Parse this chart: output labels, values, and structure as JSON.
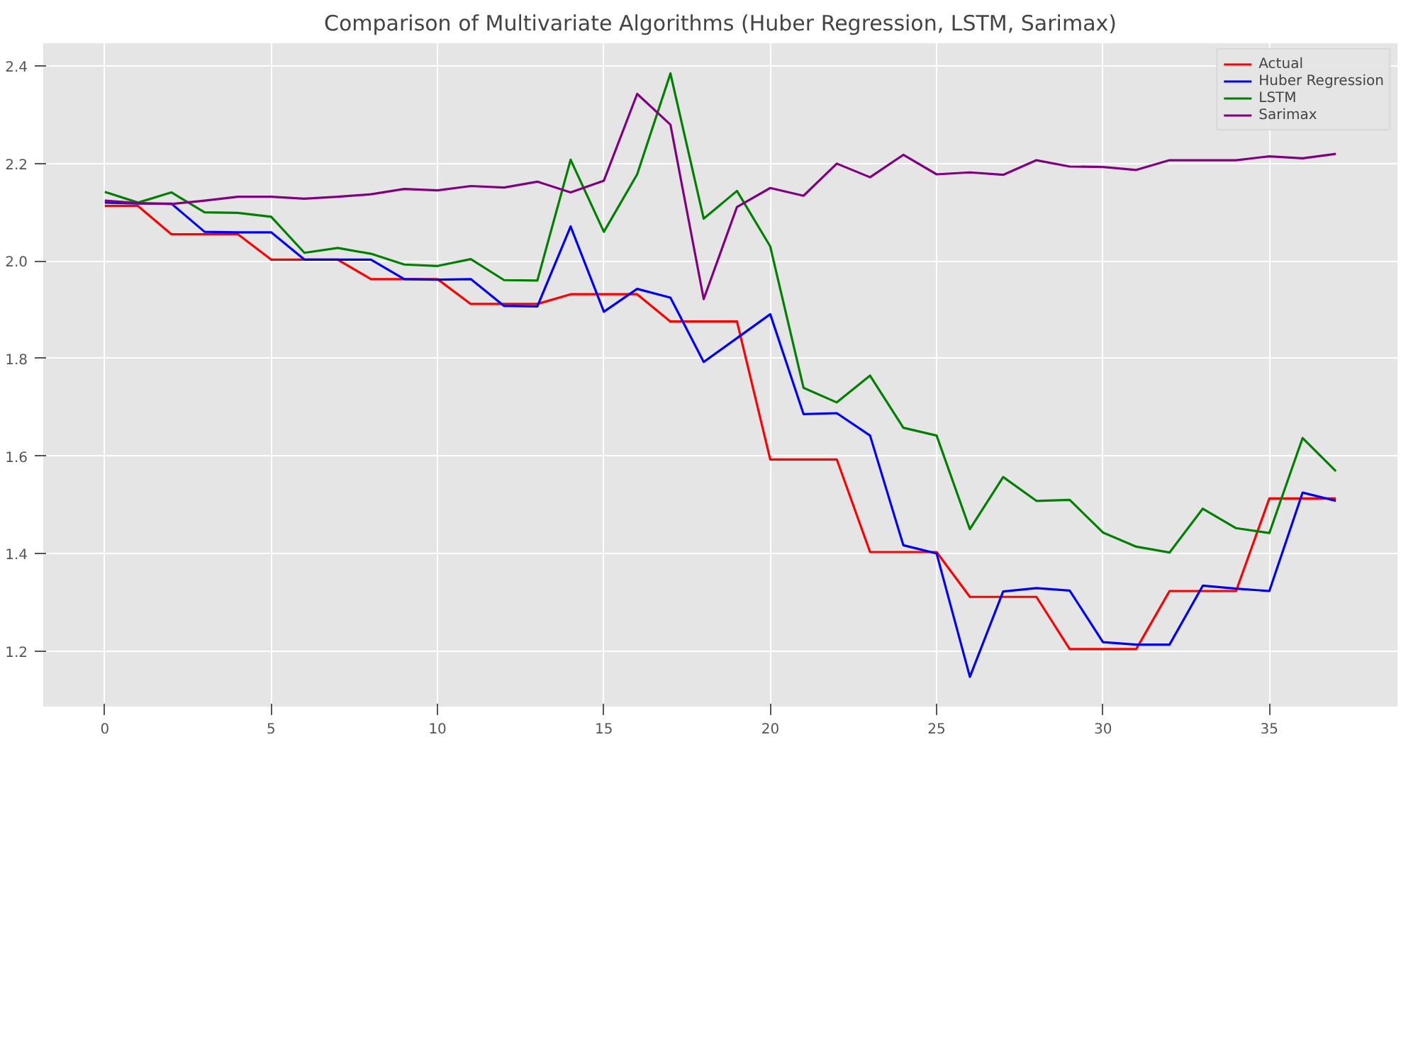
{
  "chart_data": {
    "type": "line",
    "title": "Comparison of Multivariate Algorithms (Huber Regression, LSTM, Sarimax)",
    "x": [
      0,
      1,
      2,
      3,
      4,
      5,
      6,
      7,
      8,
      9,
      10,
      11,
      12,
      13,
      14,
      15,
      16,
      17,
      18,
      19,
      20,
      21,
      22,
      23,
      24,
      25,
      26,
      27,
      28,
      29,
      30,
      31,
      32,
      33,
      34,
      35,
      36,
      37
    ],
    "series": [
      {
        "name": "Actual",
        "color": "#ff0000",
        "values": [
          2.113,
          2.113,
          2.055,
          2.055,
          2.055,
          2.003,
          2.003,
          2.003,
          1.963,
          1.963,
          1.963,
          1.912,
          1.912,
          1.912,
          1.932,
          1.932,
          1.932,
          1.876,
          1.876,
          1.876,
          1.593,
          1.593,
          1.593,
          1.403,
          1.403,
          1.403,
          1.311,
          1.311,
          1.311,
          1.204,
          1.204,
          1.204,
          1.323,
          1.323,
          1.323,
          1.513,
          1.513,
          1.513
        ]
      },
      {
        "name": "Huber Regression",
        "color": "#0000ff",
        "values": [
          2.12,
          2.118,
          2.118,
          2.06,
          2.059,
          2.059,
          2.003,
          2.003,
          2.003,
          1.963,
          1.962,
          1.963,
          1.908,
          1.907,
          2.071,
          1.896,
          1.943,
          1.925,
          1.793,
          1.842,
          1.891,
          1.686,
          1.688,
          1.642,
          1.417,
          1.4,
          1.147,
          1.322,
          1.329,
          1.324,
          1.218,
          1.213,
          1.213,
          1.334,
          1.328,
          1.323,
          1.525,
          1.508
        ]
      },
      {
        "name": "LSTM",
        "color": "#008000",
        "values": [
          2.142,
          2.12,
          2.141,
          2.1,
          2.099,
          2.091,
          2.017,
          2.027,
          2.015,
          1.993,
          1.99,
          2.004,
          1.961,
          1.96,
          2.208,
          2.06,
          2.178,
          2.385,
          2.087,
          2.144,
          2.03,
          1.74,
          1.71,
          1.765,
          1.658,
          1.642,
          1.45,
          1.557,
          1.508,
          1.51,
          1.443,
          1.414,
          1.402,
          1.492,
          1.452,
          1.442,
          1.637,
          1.569
        ]
      },
      {
        "name": "Sarimax",
        "color": "#800080",
        "values": [
          2.124,
          2.119,
          2.117,
          2.124,
          2.132,
          2.132,
          2.128,
          2.132,
          2.137,
          2.148,
          2.145,
          2.154,
          2.151,
          2.163,
          2.141,
          2.165,
          2.343,
          2.28,
          1.922,
          2.111,
          2.15,
          2.134,
          2.2,
          2.172,
          2.218,
          2.178,
          2.182,
          2.177,
          2.207,
          2.194,
          2.193,
          2.187,
          2.207,
          2.207,
          2.207,
          2.215,
          2.211,
          2.22
        ]
      }
    ],
    "xlim": [
      -1.85,
      38.85
    ],
    "ylim": [
      1.086,
      2.447
    ],
    "xticks": [
      0,
      5,
      10,
      15,
      20,
      25,
      30,
      35
    ],
    "yticks": [
      {
        "value": 1.2,
        "label": "1.2"
      },
      {
        "value": 1.4,
        "label": "1.4"
      },
      {
        "value": 1.6,
        "label": "1.6"
      },
      {
        "value": 1.8,
        "label": "1.8"
      },
      {
        "value": 2.0,
        "label": "2.0"
      },
      {
        "value": 2.2,
        "label": "2.2"
      },
      {
        "value": 2.4,
        "label": "2.4"
      }
    ],
    "grid": true,
    "legend": "top right",
    "line_style": "solid"
  }
}
